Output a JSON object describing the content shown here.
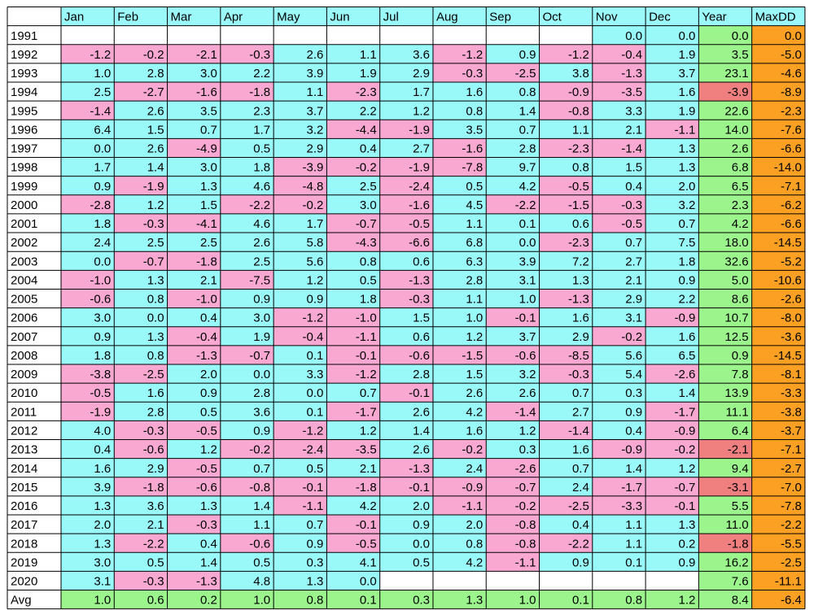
{
  "chart_data": {
    "type": "table",
    "corner": "",
    "columns": [
      "Jan",
      "Feb",
      "Mar",
      "Apr",
      "May",
      "Jun",
      "Jul",
      "Aug",
      "Sep",
      "Oct",
      "Nov",
      "Dec",
      "Year",
      "MaxDD"
    ],
    "rows": [
      {
        "label": "1991",
        "values": [
          null,
          null,
          null,
          null,
          null,
          null,
          null,
          null,
          null,
          null,
          "0.0",
          "0.0",
          "0.0",
          "0.0"
        ]
      },
      {
        "label": "1992",
        "values": [
          "-1.2",
          "-0.2",
          "-2.1",
          "-0.3",
          "2.6",
          "1.1",
          "3.6",
          "-1.2",
          "0.9",
          "-1.2",
          "-0.4",
          "1.9",
          "3.5",
          "-5.0"
        ]
      },
      {
        "label": "1993",
        "values": [
          "1.0",
          "2.8",
          "3.0",
          "2.2",
          "3.9",
          "1.9",
          "2.9",
          "-0.3",
          "-2.5",
          "3.8",
          "-1.3",
          "3.7",
          "23.1",
          "-4.6"
        ]
      },
      {
        "label": "1994",
        "values": [
          "2.5",
          "-2.7",
          "-1.6",
          "-1.8",
          "1.1",
          "-2.3",
          "1.7",
          "1.6",
          "0.8",
          "-0.9",
          "-3.5",
          "1.6",
          "-3.9",
          "-8.9"
        ]
      },
      {
        "label": "1995",
        "values": [
          "-1.4",
          "2.6",
          "3.5",
          "2.3",
          "3.7",
          "2.2",
          "1.2",
          "0.8",
          "1.4",
          "-0.8",
          "3.3",
          "1.9",
          "22.6",
          "-2.3"
        ]
      },
      {
        "label": "1996",
        "values": [
          "6.4",
          "1.5",
          "0.7",
          "1.7",
          "3.2",
          "-4.4",
          "-1.9",
          "3.5",
          "0.7",
          "1.1",
          "2.1",
          "-1.1",
          "14.0",
          "-7.6"
        ]
      },
      {
        "label": "1997",
        "values": [
          "0.0",
          "2.6",
          "-4.9",
          "0.5",
          "2.9",
          "0.4",
          "2.7",
          "-1.6",
          "2.8",
          "-2.3",
          "-1.4",
          "1.3",
          "2.6",
          "-6.6"
        ]
      },
      {
        "label": "1998",
        "values": [
          "1.7",
          "1.4",
          "3.0",
          "1.8",
          "-3.9",
          "-0.2",
          "-1.9",
          "-7.8",
          "9.7",
          "0.8",
          "1.5",
          "1.3",
          "6.8",
          "-14.0"
        ]
      },
      {
        "label": "1999",
        "values": [
          "0.9",
          "-1.9",
          "1.3",
          "4.6",
          "-4.8",
          "2.5",
          "-2.4",
          "0.5",
          "4.2",
          "-0.5",
          "0.4",
          "2.0",
          "6.5",
          "-7.1"
        ]
      },
      {
        "label": "2000",
        "values": [
          "-2.8",
          "1.2",
          "1.5",
          "-2.2",
          "-0.2",
          "3.0",
          "-1.6",
          "4.5",
          "-2.2",
          "-1.5",
          "-0.3",
          "3.2",
          "2.3",
          "-6.2"
        ]
      },
      {
        "label": "2001",
        "values": [
          "1.8",
          "-0.3",
          "-4.1",
          "4.6",
          "1.7",
          "-0.7",
          "-0.5",
          "1.1",
          "0.1",
          "0.6",
          "-0.5",
          "0.7",
          "4.2",
          "-6.6"
        ]
      },
      {
        "label": "2002",
        "values": [
          "2.4",
          "2.5",
          "2.5",
          "2.6",
          "5.8",
          "-4.3",
          "-6.6",
          "6.8",
          "0.0",
          "-2.3",
          "0.7",
          "7.5",
          "18.0",
          "-14.5"
        ]
      },
      {
        "label": "2003",
        "values": [
          "0.0",
          "-0.7",
          "-1.8",
          "2.5",
          "5.6",
          "0.8",
          "0.6",
          "6.3",
          "3.9",
          "7.2",
          "2.7",
          "1.8",
          "32.6",
          "-5.2"
        ]
      },
      {
        "label": "2004",
        "values": [
          "-1.0",
          "1.3",
          "2.1",
          "-7.5",
          "1.2",
          "0.5",
          "-1.3",
          "2.8",
          "3.1",
          "1.3",
          "2.1",
          "0.9",
          "5.0",
          "-10.6"
        ]
      },
      {
        "label": "2005",
        "values": [
          "-0.6",
          "0.8",
          "-1.0",
          "0.9",
          "0.9",
          "1.8",
          "-0.3",
          "1.1",
          "1.0",
          "-1.3",
          "2.9",
          "2.2",
          "8.6",
          "-2.6"
        ]
      },
      {
        "label": "2006",
        "values": [
          "3.0",
          "0.0",
          "0.4",
          "3.0",
          "-1.2",
          "-1.0",
          "1.5",
          "1.0",
          "-0.1",
          "1.6",
          "3.1",
          "-0.9",
          "10.7",
          "-8.0"
        ]
      },
      {
        "label": "2007",
        "values": [
          "0.9",
          "1.3",
          "-0.4",
          "1.9",
          "-0.4",
          "-1.1",
          "0.6",
          "1.2",
          "3.7",
          "2.9",
          "-0.2",
          "1.6",
          "12.5",
          "-3.6"
        ]
      },
      {
        "label": "2008",
        "values": [
          "1.8",
          "0.8",
          "-1.3",
          "-0.7",
          "0.1",
          "-0.1",
          "-0.6",
          "-1.5",
          "-0.6",
          "-8.5",
          "5.6",
          "6.5",
          "0.9",
          "-14.5"
        ]
      },
      {
        "label": "2009",
        "values": [
          "-3.8",
          "-2.5",
          "2.0",
          "0.0",
          "3.3",
          "-1.2",
          "2.8",
          "1.5",
          "3.2",
          "-0.3",
          "5.4",
          "-2.6",
          "7.8",
          "-8.1"
        ]
      },
      {
        "label": "2010",
        "values": [
          "-0.5",
          "1.6",
          "0.9",
          "2.8",
          "0.0",
          "0.7",
          "-0.1",
          "2.6",
          "2.6",
          "0.7",
          "0.3",
          "1.4",
          "13.9",
          "-3.3"
        ]
      },
      {
        "label": "2011",
        "values": [
          "-1.9",
          "2.8",
          "0.5",
          "3.6",
          "0.1",
          "-1.7",
          "2.6",
          "4.2",
          "-1.4",
          "2.7",
          "0.9",
          "-1.7",
          "11.1",
          "-3.8"
        ]
      },
      {
        "label": "2012",
        "values": [
          "4.0",
          "-0.3",
          "-0.5",
          "0.9",
          "-1.2",
          "1.2",
          "1.4",
          "1.6",
          "1.2",
          "-1.4",
          "0.4",
          "-0.9",
          "6.4",
          "-3.7"
        ]
      },
      {
        "label": "2013",
        "values": [
          "0.4",
          "-0.6",
          "1.2",
          "-0.2",
          "-2.4",
          "-3.5",
          "2.6",
          "-0.2",
          "0.3",
          "1.6",
          "-0.9",
          "-0.2",
          "-2.1",
          "-7.1"
        ]
      },
      {
        "label": "2014",
        "values": [
          "1.6",
          "2.9",
          "-0.5",
          "0.7",
          "0.5",
          "2.1",
          "-1.3",
          "2.4",
          "-2.6",
          "0.7",
          "1.4",
          "1.2",
          "9.4",
          "-2.7"
        ]
      },
      {
        "label": "2015",
        "values": [
          "3.9",
          "-1.8",
          "-0.6",
          "-0.8",
          "-0.1",
          "-1.8",
          "-0.1",
          "-0.9",
          "-0.7",
          "2.4",
          "-1.7",
          "-0.7",
          "-3.1",
          "-7.0"
        ]
      },
      {
        "label": "2016",
        "values": [
          "1.3",
          "3.6",
          "1.3",
          "1.4",
          "-1.1",
          "4.2",
          "2.0",
          "-1.1",
          "-0.2",
          "-2.5",
          "-3.3",
          "-0.1",
          "5.5",
          "-7.8"
        ]
      },
      {
        "label": "2017",
        "values": [
          "2.0",
          "2.1",
          "-0.3",
          "1.1",
          "0.7",
          "-0.1",
          "0.9",
          "2.0",
          "-0.8",
          "0.4",
          "1.1",
          "1.3",
          "11.0",
          "-2.2"
        ]
      },
      {
        "label": "2018",
        "values": [
          "1.3",
          "-2.2",
          "0.4",
          "-0.6",
          "0.9",
          "-0.5",
          "0.0",
          "0.8",
          "-0.8",
          "-2.2",
          "1.1",
          "0.2",
          "-1.8",
          "-5.5"
        ]
      },
      {
        "label": "2019",
        "values": [
          "3.0",
          "0.5",
          "1.4",
          "0.5",
          "0.3",
          "4.1",
          "0.5",
          "4.2",
          "-1.1",
          "0.9",
          "0.1",
          "0.9",
          "16.2",
          "-2.5"
        ]
      },
      {
        "label": "2020",
        "values": [
          "3.1",
          "-0.3",
          "-1.3",
          "4.8",
          "1.3",
          "0.0",
          null,
          null,
          null,
          null,
          null,
          null,
          "7.6",
          "-11.1"
        ]
      },
      {
        "label": "Avg",
        "values": [
          "1.0",
          "0.6",
          "0.2",
          "1.0",
          "0.8",
          "0.1",
          "0.3",
          "1.3",
          "1.0",
          "0.1",
          "0.8",
          "1.2",
          "8.4",
          "-6.4"
        ]
      }
    ],
    "colors": {
      "positive": "#99f9f9",
      "negative": "#f9a8d2",
      "year_positive": "#9cf58c",
      "year_negative": "#f08080",
      "maxdd": "#fba022",
      "avg": "#9cf58c",
      "header": "#9cf9f9",
      "empty": "#ffffff",
      "border": "#000000"
    }
  }
}
